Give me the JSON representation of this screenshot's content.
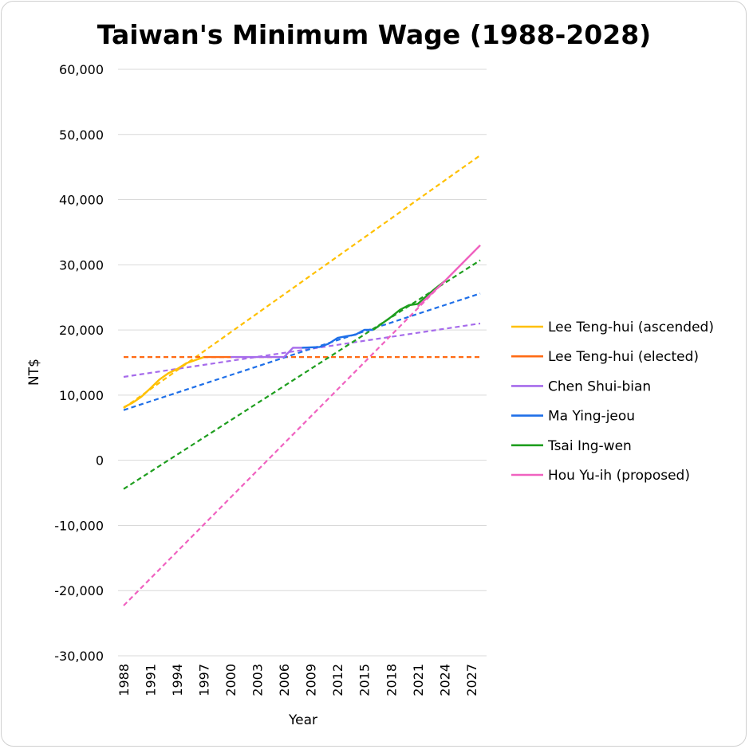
{
  "chart_data": {
    "type": "line",
    "title": "Taiwan's Minimum Wage (1988-2028)",
    "xlabel": "Year",
    "ylabel": "NT$",
    "xlim": [
      1988,
      2028
    ],
    "ylim": [
      -30000,
      60000
    ],
    "x_ticks": [
      "1988",
      "1991",
      "1994",
      "1997",
      "2000",
      "2003",
      "2006",
      "2009",
      "2012",
      "2015",
      "2018",
      "2021",
      "2024",
      "2027"
    ],
    "y_ticks": [
      "60,000",
      "50,000",
      "40,000",
      "30,000",
      "20,000",
      "10,000",
      "0",
      "-10,000",
      "-20,000",
      "-30,000"
    ],
    "grid": "horizontal",
    "legend_position": "right",
    "series": [
      {
        "name": "Lee Teng-hui (ascended)",
        "color": "#FFC000",
        "values": [
          [
            1988,
            8130
          ],
          [
            1989,
            8820
          ],
          [
            1990,
            9750
          ],
          [
            1991,
            11040
          ],
          [
            1992,
            12365
          ],
          [
            1993,
            13350
          ],
          [
            1994,
            14010
          ],
          [
            1995,
            14880
          ],
          [
            1996,
            15360
          ],
          [
            1997,
            15840
          ]
        ],
        "trend": [
          [
            1988,
            8000
          ],
          [
            2028,
            46800
          ]
        ]
      },
      {
        "name": "Lee Teng-hui (elected)",
        "color": "#FF6A13",
        "values": [
          [
            1997,
            15840
          ],
          [
            2000,
            15840
          ]
        ],
        "trend": [
          [
            1988,
            15840
          ],
          [
            2028,
            15840
          ]
        ]
      },
      {
        "name": "Chen Shui-bian",
        "color": "#A66BEB",
        "values": [
          [
            2000,
            15840
          ],
          [
            2003,
            15840
          ],
          [
            2006,
            15840
          ],
          [
            2007,
            17280
          ],
          [
            2008,
            17280
          ]
        ],
        "trend": [
          [
            1988,
            12800
          ],
          [
            2028,
            21000
          ]
        ]
      },
      {
        "name": "Ma Ying-jeou",
        "color": "#1E6FE8",
        "values": [
          [
            2008,
            17280
          ],
          [
            2010,
            17400
          ],
          [
            2011,
            17880
          ],
          [
            2012,
            18780
          ],
          [
            2013,
            19047
          ],
          [
            2014,
            19273
          ],
          [
            2015,
            20008
          ],
          [
            2016,
            20008
          ]
        ],
        "trend": [
          [
            1988,
            7700
          ],
          [
            2028,
            25600
          ]
        ]
      },
      {
        "name": "Tsai Ing-wen",
        "color": "#1E9E1E",
        "values": [
          [
            2016,
            20008
          ],
          [
            2017,
            21009
          ],
          [
            2018,
            22000
          ],
          [
            2019,
            23100
          ],
          [
            2020,
            23800
          ],
          [
            2021,
            24000
          ],
          [
            2022,
            25250
          ],
          [
            2023,
            26400
          ],
          [
            2024,
            27470
          ]
        ],
        "trend": [
          [
            1988,
            -4400
          ],
          [
            2028,
            30700
          ]
        ]
      },
      {
        "name": "Hou Yu-ih (proposed)",
        "color": "#F062C0",
        "values": [
          [
            2021,
            23600
          ],
          [
            2024,
            27470
          ],
          [
            2028,
            33000
          ]
        ],
        "trend": [
          [
            1988,
            -22300
          ],
          [
            2028,
            33000
          ]
        ]
      }
    ]
  }
}
